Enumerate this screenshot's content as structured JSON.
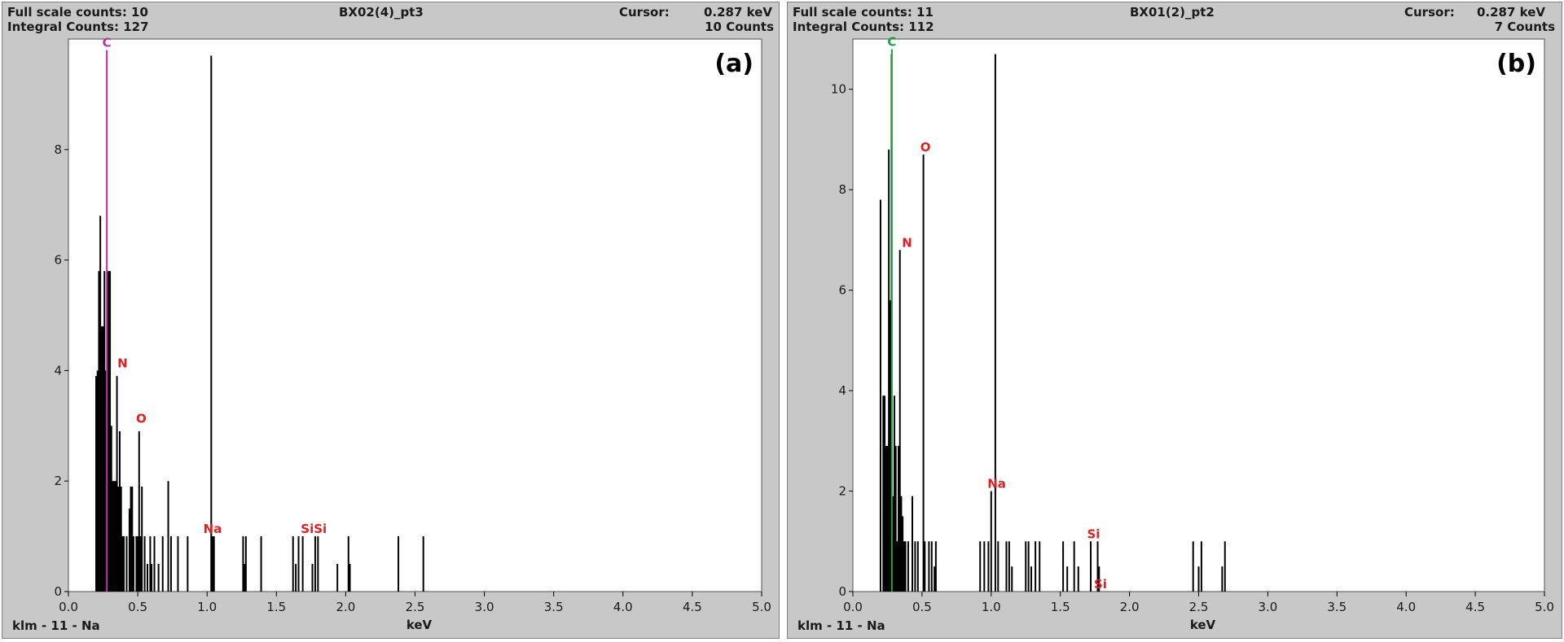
{
  "panels": [
    {
      "full_scale": "Full scale counts: 10",
      "integral": "Integral Counts: 127",
      "spectrum": "BX02(4)_pt3",
      "cursor_label": "Cursor:",
      "cursor_value": "0.287 keV",
      "counts": "10 Counts",
      "footer": "klm - 11 - Na"
    },
    {
      "full_scale": "Full scale counts: 11",
      "integral": "Integral Counts: 112",
      "spectrum": "BX01(2)_pt2",
      "cursor_label": "Cursor:",
      "cursor_value": "0.287 keV",
      "counts": "7 Counts",
      "footer": "klm - 11 - Na"
    }
  ],
  "chart_data": [
    {
      "type": "bar",
      "panel_label": "(a)",
      "xlabel": "keV",
      "ylabel": "",
      "xlim": [
        0,
        5
      ],
      "ylim": [
        0,
        10
      ],
      "x_ticks": [
        "0.0",
        "0.5",
        "1.0",
        "1.5",
        "2.0",
        "2.5",
        "3.0",
        "3.5",
        "4.0",
        "4.5",
        "5.0"
      ],
      "y_ticks": [
        "0",
        "2",
        "4",
        "6",
        "8"
      ],
      "series": [
        {
          "x": [
            0.2,
            0.21,
            0.22,
            0.23,
            0.24,
            0.25,
            0.26,
            0.27,
            0.28,
            0.29,
            0.3,
            0.31,
            0.32,
            0.33,
            0.34,
            0.35,
            0.36,
            0.37,
            0.38,
            0.39,
            0.4,
            0.42,
            0.44,
            0.45,
            0.46,
            0.47,
            0.49,
            0.5,
            0.51,
            0.52,
            0.53,
            0.55,
            0.57,
            0.59,
            0.6,
            0.62,
            0.65,
            0.68,
            0.72,
            0.74,
            0.79,
            0.86,
            1.03,
            1.04,
            1.05,
            1.26,
            1.27,
            1.28,
            1.39,
            1.62,
            1.64,
            1.66,
            1.69,
            1.76,
            1.78,
            1.8,
            1.94,
            2.02,
            2.03,
            2.38,
            2.56
          ],
          "y": [
            3.9,
            4.0,
            5.8,
            6.8,
            4.8,
            4.8,
            5.8,
            4.0,
            5.8,
            5.8,
            5.8,
            3.0,
            2.0,
            2.0,
            2.0,
            3.9,
            1.9,
            2.9,
            1.9,
            1.0,
            1.0,
            1.0,
            1.5,
            1.9,
            1.9,
            1.0,
            1.0,
            1.0,
            2.9,
            1.0,
            1.9,
            1.0,
            0.5,
            1.0,
            0.5,
            1.0,
            0.5,
            1.0,
            2.0,
            1.0,
            1.0,
            1.0,
            9.7,
            1.0,
            1.0,
            1.0,
            0.5,
            1.0,
            1.0,
            1.0,
            0.5,
            1.0,
            1.0,
            0.5,
            1.0,
            1.0,
            0.5,
            1.0,
            0.5,
            1.0,
            1.0
          ]
        }
      ],
      "markers": [
        {
          "label": "C",
          "x": 0.277,
          "y": 9.8,
          "color": "#c030a0"
        },
        {
          "label": "N",
          "x": 0.39,
          "y": 4.0,
          "color": "#e02020"
        },
        {
          "label": "O",
          "x": 0.525,
          "y": 3.0,
          "color": "#e02020"
        },
        {
          "label": "Na",
          "x": 1.04,
          "y": 1.0,
          "color": "#e02020"
        },
        {
          "label": "SiSi",
          "x": 1.77,
          "y": 1.0,
          "color": "#e02020"
        }
      ]
    },
    {
      "type": "bar",
      "panel_label": "(b)",
      "xlabel": "keV",
      "ylabel": "",
      "xlim": [
        0,
        5
      ],
      "ylim": [
        0,
        11
      ],
      "x_ticks": [
        "0.0",
        "0.5",
        "1.0",
        "1.5",
        "2.0",
        "2.5",
        "3.0",
        "3.5",
        "4.0",
        "4.5",
        "5.0"
      ],
      "y_ticks": [
        "0",
        "2",
        "4",
        "6",
        "8",
        "10"
      ],
      "series": [
        {
          "x": [
            0.2,
            0.22,
            0.23,
            0.24,
            0.25,
            0.26,
            0.27,
            0.28,
            0.29,
            0.3,
            0.31,
            0.32,
            0.33,
            0.34,
            0.35,
            0.36,
            0.37,
            0.38,
            0.4,
            0.43,
            0.45,
            0.47,
            0.51,
            0.52,
            0.55,
            0.57,
            0.59,
            0.6,
            0.92,
            0.95,
            0.98,
            1.0,
            1.03,
            1.05,
            1.11,
            1.13,
            1.15,
            1.25,
            1.27,
            1.29,
            1.32,
            1.35,
            1.52,
            1.55,
            1.6,
            1.63,
            1.72,
            1.77,
            1.78,
            2.46,
            2.5,
            2.52,
            2.67,
            2.69
          ],
          "y": [
            7.8,
            3.9,
            3.9,
            2.9,
            2.9,
            8.8,
            5.8,
            10.7,
            1.9,
            3.9,
            2.9,
            1.0,
            2.9,
            6.8,
            1.9,
            1.5,
            1.0,
            1.0,
            1.0,
            1.9,
            1.0,
            1.0,
            8.7,
            1.0,
            1.0,
            1.0,
            0.5,
            1.0,
            1.0,
            1.0,
            1.0,
            2.0,
            10.7,
            1.0,
            1.0,
            1.0,
            0.5,
            1.0,
            1.0,
            0.5,
            1.0,
            1.0,
            1.0,
            0.5,
            1.0,
            0.5,
            1.0,
            1.0,
            0.5,
            1.0,
            0.5,
            1.0,
            0.5,
            1.0
          ]
        }
      ],
      "markers": [
        {
          "label": "C",
          "x": 0.282,
          "y": 10.8,
          "color": "#20a040"
        },
        {
          "label": "N",
          "x": 0.392,
          "y": 6.8,
          "color": "#e02020"
        },
        {
          "label": "O",
          "x": 0.525,
          "y": 8.7,
          "color": "#e02020"
        },
        {
          "label": "Na",
          "x": 1.04,
          "y": 2.0,
          "color": "#e02020"
        },
        {
          "label": "Si",
          "x": 1.74,
          "y": 1.0,
          "color": "#e02020"
        },
        {
          "label": "Si",
          "x": 1.79,
          "y": 0.0,
          "color": "#e02020"
        }
      ]
    }
  ]
}
